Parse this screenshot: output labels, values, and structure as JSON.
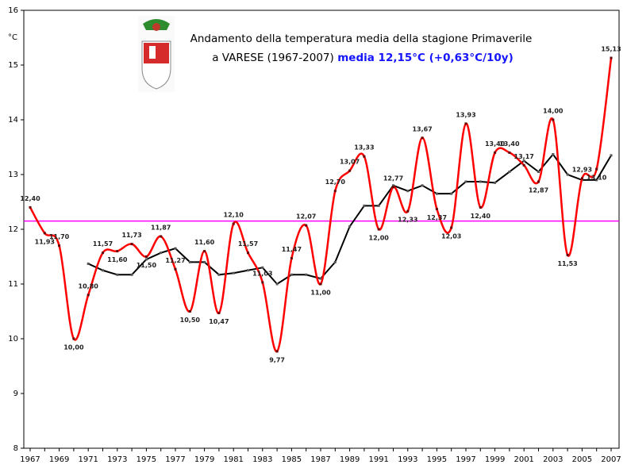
{
  "chart_data": {
    "type": "line",
    "title": "Andamento della temperatura media della stagione Primaverile",
    "subtitle": "a VARESE (1967-2007)",
    "annotation": "media 12,15°C (+0,63°C/10y)",
    "y_label": "°C",
    "categories": [
      "1967",
      null,
      "1969",
      null,
      "1971",
      null,
      "1973",
      null,
      "1975",
      null,
      "1977",
      null,
      "1979",
      null,
      "1981",
      null,
      "1983",
      null,
      "1985",
      null,
      "1987",
      null,
      "1989",
      null,
      "1991",
      null,
      "1993",
      null,
      "1995",
      null,
      "1997",
      null,
      "1999",
      null,
      "2001",
      null,
      "2003",
      null,
      "2005",
      null,
      "2007"
    ],
    "series": [
      {
        "color": "#ff0000",
        "values": [
          12.4,
          11.93,
          11.7,
          10.0,
          10.8,
          11.57,
          11.6,
          11.73,
          11.5,
          11.87,
          11.27,
          10.5,
          11.6,
          10.47,
          12.1,
          11.57,
          11.03,
          9.77,
          11.47,
          12.07,
          11.0,
          12.7,
          13.07,
          13.33,
          12.0,
          12.77,
          12.33,
          13.67,
          12.37,
          12.03,
          13.93,
          12.4,
          13.4,
          13.4,
          13.17,
          12.87,
          14.0,
          11.53,
          12.93,
          13.1,
          15.13
        ],
        "value_labels": [
          "12,40",
          "11,93",
          "11,70",
          "10,00",
          "10,80",
          "11,57",
          "11,60",
          "11,73",
          "11,50",
          "11,87",
          "11,27",
          "10,50",
          "11,60",
          "10,47",
          "12,10",
          "11,57",
          "11,03",
          "9,77",
          "11,47",
          "12,07",
          "11,00",
          "12,70",
          "13,07",
          "13,33",
          "12,00",
          "12,77",
          "12,33",
          "13,67",
          "12,37",
          "12,03",
          "13,93",
          "12,40",
          "13,40",
          "13,40",
          "13,17",
          "12,87",
          "14,00",
          "11,53",
          "12,93",
          "13,10",
          "15,13"
        ]
      },
      {
        "color": "#000000",
        "values": [
          null,
          null,
          null,
          null,
          11.37,
          11.25,
          11.17,
          11.17,
          11.45,
          11.57,
          11.65,
          11.4,
          11.4,
          11.17,
          11.2,
          11.25,
          11.3,
          11.0,
          11.17,
          11.17,
          11.1,
          11.4,
          12.05,
          12.43,
          12.43,
          12.8,
          12.7,
          12.8,
          12.65,
          12.65,
          12.87,
          12.87,
          12.85,
          13.05,
          13.25,
          13.05,
          13.37,
          13.0,
          12.9,
          12.9,
          13.35
        ]
      }
    ],
    "mean": 12.15,
    "mean_color": "#ff00ff",
    "ylim": [
      8,
      16
    ],
    "yticks": [
      8,
      9,
      10,
      11,
      12,
      13,
      14,
      15,
      16
    ]
  }
}
